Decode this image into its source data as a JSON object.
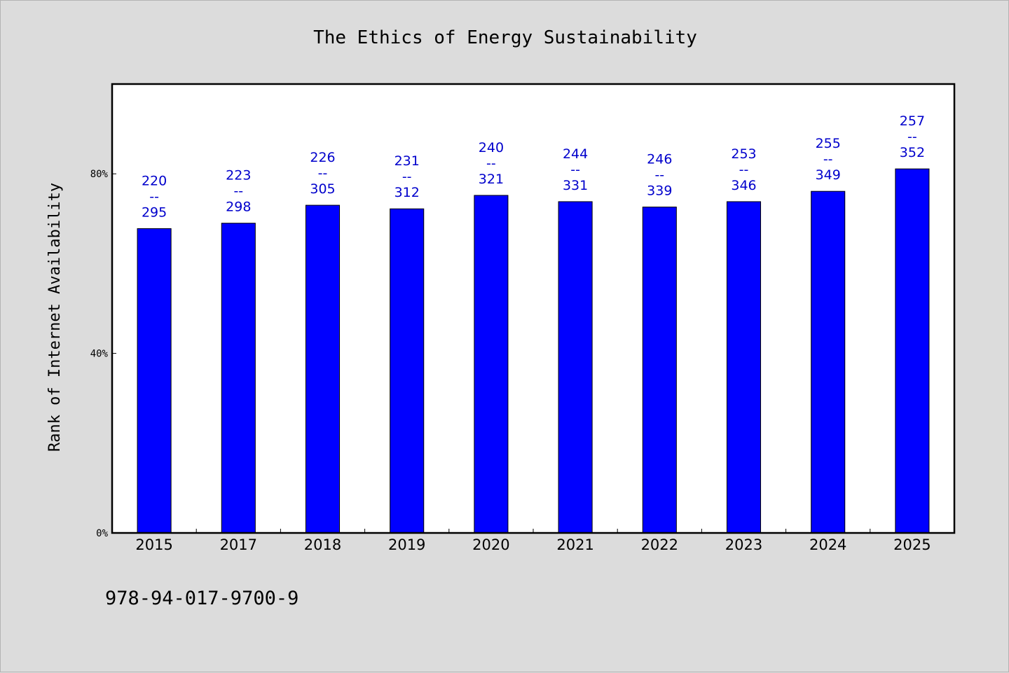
{
  "chart_data": {
    "type": "bar",
    "title": "The Ethics of Energy Sustainability",
    "xlabel": "",
    "ylabel": "Rank of Internet Availability",
    "categories": [
      "2015",
      "2017",
      "2018",
      "2019",
      "2020",
      "2021",
      "2022",
      "2023",
      "2024",
      "2025"
    ],
    "values": [
      67.8,
      69.0,
      73.0,
      72.2,
      75.2,
      73.8,
      72.6,
      73.8,
      76.1,
      81.1
    ],
    "data_labels": [
      [
        "220",
        "--",
        "295"
      ],
      [
        "223",
        "--",
        "298"
      ],
      [
        "226",
        "--",
        "305"
      ],
      [
        "231",
        "--",
        "312"
      ],
      [
        "240",
        "--",
        "321"
      ],
      [
        "244",
        "--",
        "331"
      ],
      [
        "246",
        "--",
        "339"
      ],
      [
        "253",
        "--",
        "346"
      ],
      [
        "255",
        "--",
        "349"
      ],
      [
        "257",
        "--",
        "352"
      ]
    ],
    "yticks": [
      0,
      40,
      80
    ],
    "ytick_labels": [
      "0%",
      "40%",
      "80%"
    ],
    "ylim": [
      0,
      100
    ],
    "grid": false,
    "legend": "none",
    "colors": {
      "bar": "#0000ff",
      "bar_stroke": "#000000",
      "data_label": "#0000cc",
      "plot_bg": "#ffffff",
      "figure_bg": "#dcdcdc"
    }
  },
  "footer": {
    "text": "978-94-017-9700-9"
  }
}
